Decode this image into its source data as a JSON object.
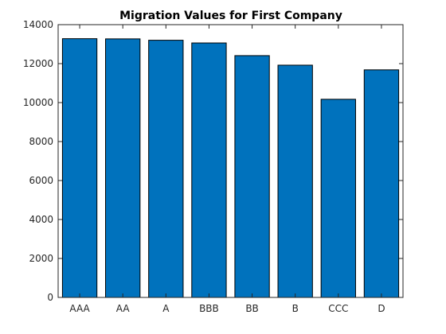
{
  "chart_data": {
    "type": "bar",
    "title": "Migration Values for First Company",
    "xlabel": "",
    "ylabel": "",
    "categories": [
      "AAA",
      "AA",
      "A",
      "BBB",
      "BB",
      "B",
      "CCC",
      "D"
    ],
    "values": [
      13280,
      13270,
      13200,
      13060,
      12410,
      11920,
      10170,
      11680
    ],
    "ylim": [
      0,
      14000
    ],
    "yticks": [
      0,
      2000,
      4000,
      6000,
      8000,
      10000,
      12000,
      14000
    ],
    "ytick_labels": [
      "0",
      "2000",
      "4000",
      "6000",
      "8000",
      "10000",
      "12000",
      "14000"
    ],
    "grid": false,
    "legend": "none",
    "bar_color": "#0072BD",
    "bar_edge_color": "#000000",
    "axis_color": "#262626"
  }
}
